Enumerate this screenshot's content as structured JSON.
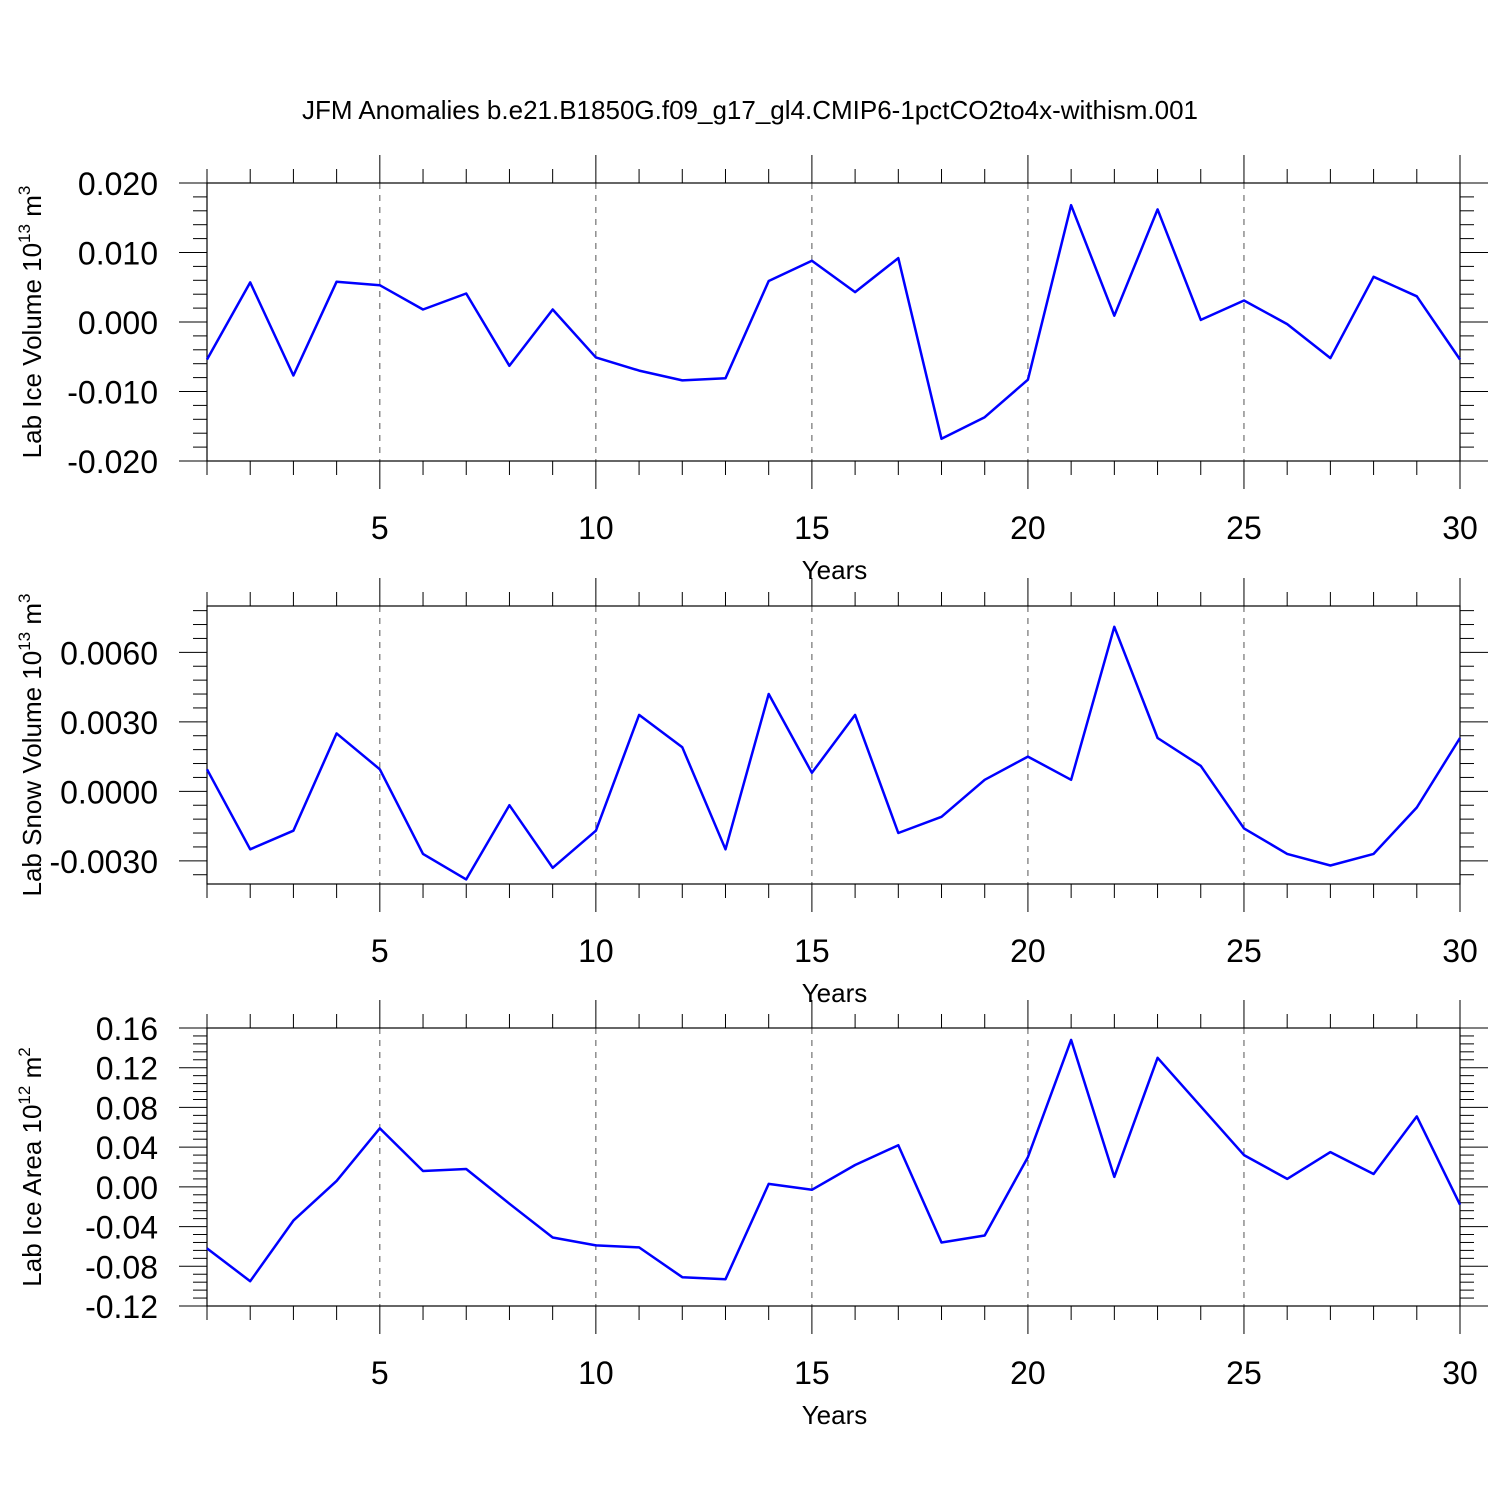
{
  "figure": {
    "title": "JFM Anomalies b.e21.B1850G.f09_g17_gl4.CMIP6-1pctCO2to4x-withism.001",
    "line_color": "#0000ff"
  },
  "chart_data": [
    {
      "type": "line",
      "xlabel": "Years",
      "ylabel": {
        "text": "Lab Ice Volume 10",
        "sup": "13",
        "unit": " m",
        "unit_sup": "3"
      },
      "xlim": [
        1,
        30
      ],
      "ylim": [
        -0.02,
        0.02
      ],
      "xticks": [
        5,
        10,
        15,
        20,
        25,
        30
      ],
      "xtick_labels": [
        "5",
        "10",
        "15",
        "20",
        "25",
        "30"
      ],
      "yticks": [
        0.02,
        0.01,
        0.0,
        -0.01,
        -0.02
      ],
      "ytick_labels": [
        "0.020",
        "0.010",
        "0.000",
        "-0.010",
        "-0.020"
      ],
      "grid": "dashed vertical at major x ticks",
      "series": [
        {
          "x": [
            1,
            2,
            3,
            4,
            5,
            6,
            7,
            8,
            9,
            10,
            11,
            12,
            13,
            14,
            15,
            16,
            17,
            18,
            19,
            20,
            21,
            22,
            23,
            24,
            25,
            26,
            27,
            28,
            29,
            30
          ],
          "values": [
            -0.0054,
            0.0057,
            -0.0077,
            0.0058,
            0.0053,
            0.0018,
            0.0041,
            -0.0063,
            0.0018,
            -0.0051,
            -0.007,
            -0.0084,
            -0.0081,
            0.0059,
            0.0088,
            0.0043,
            0.0092,
            -0.0168,
            -0.0137,
            -0.0083,
            0.0168,
            0.0009,
            0.0162,
            0.0003,
            0.0031,
            -0.0003,
            -0.0052,
            0.0065,
            0.0037,
            -0.0054
          ]
        }
      ]
    },
    {
      "type": "line",
      "xlabel": "Years",
      "ylabel": {
        "text": "Lab Snow Volume 10",
        "sup": "13",
        "unit": " m",
        "unit_sup": "3"
      },
      "xlim": [
        1,
        30
      ],
      "ylim": [
        -0.004,
        0.008
      ],
      "xticks": [
        5,
        10,
        15,
        20,
        25,
        30
      ],
      "xtick_labels": [
        "5",
        "10",
        "15",
        "20",
        "25",
        "30"
      ],
      "yticks": [
        0.006,
        0.003,
        0.0,
        -0.003
      ],
      "ytick_labels": [
        "0.0060",
        "0.0030",
        "0.0000",
        "-0.0030"
      ],
      "grid": "dashed vertical at major x ticks",
      "series": [
        {
          "x": [
            1,
            2,
            3,
            4,
            5,
            6,
            7,
            8,
            9,
            10,
            11,
            12,
            13,
            14,
            15,
            16,
            17,
            18,
            19,
            20,
            21,
            22,
            23,
            24,
            25,
            26,
            27,
            28,
            29,
            30
          ],
          "values": [
            0.00095,
            -0.0025,
            -0.0017,
            0.0025,
            0.00095,
            -0.0027,
            -0.0038,
            -0.0006,
            -0.0033,
            -0.0017,
            0.0033,
            0.0019,
            -0.0025,
            0.0042,
            0.0008,
            0.0033,
            -0.0018,
            -0.0011,
            0.0005,
            0.0015,
            0.0005,
            0.0071,
            0.0023,
            0.0011,
            -0.0016,
            -0.0027,
            -0.0032,
            -0.0027,
            -0.0007,
            0.0023
          ]
        }
      ]
    },
    {
      "type": "line",
      "xlabel": "Years",
      "ylabel": {
        "text": "Lab Ice Area 10",
        "sup": "12",
        "unit": " m",
        "unit_sup": "2"
      },
      "xlim": [
        1,
        30
      ],
      "ylim": [
        -0.12,
        0.16
      ],
      "xticks": [
        5,
        10,
        15,
        20,
        25,
        30
      ],
      "xtick_labels": [
        "5",
        "10",
        "15",
        "20",
        "25",
        "30"
      ],
      "yticks": [
        0.16,
        0.12,
        0.08,
        0.04,
        0.0,
        -0.04,
        -0.08,
        -0.12
      ],
      "ytick_labels": [
        "0.16",
        "0.12",
        "0.08",
        "0.04",
        "0.00",
        "-0.04",
        "-0.08",
        "-0.12"
      ],
      "grid": "dashed vertical at major x ticks",
      "series": [
        {
          "x": [
            1,
            2,
            3,
            4,
            5,
            6,
            7,
            8,
            9,
            10,
            11,
            12,
            13,
            14,
            15,
            16,
            17,
            18,
            19,
            20,
            21,
            22,
            23,
            24,
            25,
            26,
            27,
            28,
            29,
            30
          ],
          "values": [
            -0.062,
            -0.095,
            -0.034,
            0.006,
            0.059,
            0.016,
            0.018,
            -0.017,
            -0.051,
            -0.059,
            -0.061,
            -0.091,
            -0.093,
            0.003,
            -0.003,
            0.022,
            0.042,
            -0.056,
            -0.049,
            0.03,
            0.148,
            0.01,
            0.13,
            0.081,
            0.032,
            0.008,
            0.035,
            0.013,
            0.071,
            -0.018
          ]
        }
      ]
    }
  ]
}
